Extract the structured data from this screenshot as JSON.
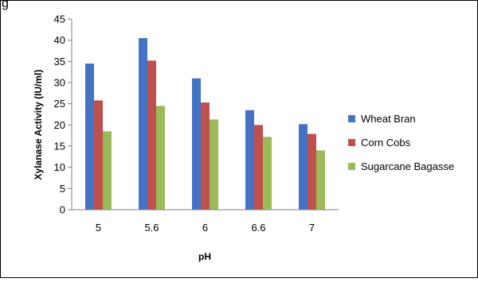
{
  "chart_data": {
    "type": "bar",
    "categories": [
      "5",
      "5.6",
      "6",
      "6.6",
      "7"
    ],
    "series": [
      {
        "name": "Wheat Bran",
        "values": [
          34.5,
          40.5,
          31,
          23.5,
          20.2
        ],
        "color": "#4472C4"
      },
      {
        "name": "Corn Cobs",
        "values": [
          25.8,
          35.2,
          25.3,
          20,
          17.9
        ],
        "color": "#C0504D"
      },
      {
        "name": "Sugarcane Bagasse",
        "values": [
          18.5,
          24.5,
          21.3,
          17.2,
          14
        ],
        "color": "#9BBB59"
      }
    ],
    "title": "",
    "xlabel": "pH",
    "ylabel": "Xylanase Activity (IU/ml)",
    "ylim": [
      0,
      45
    ],
    "yticks": [
      0,
      5,
      10,
      15,
      20,
      25,
      30,
      35,
      40,
      45
    ],
    "grid": false,
    "legend_position": "right"
  }
}
